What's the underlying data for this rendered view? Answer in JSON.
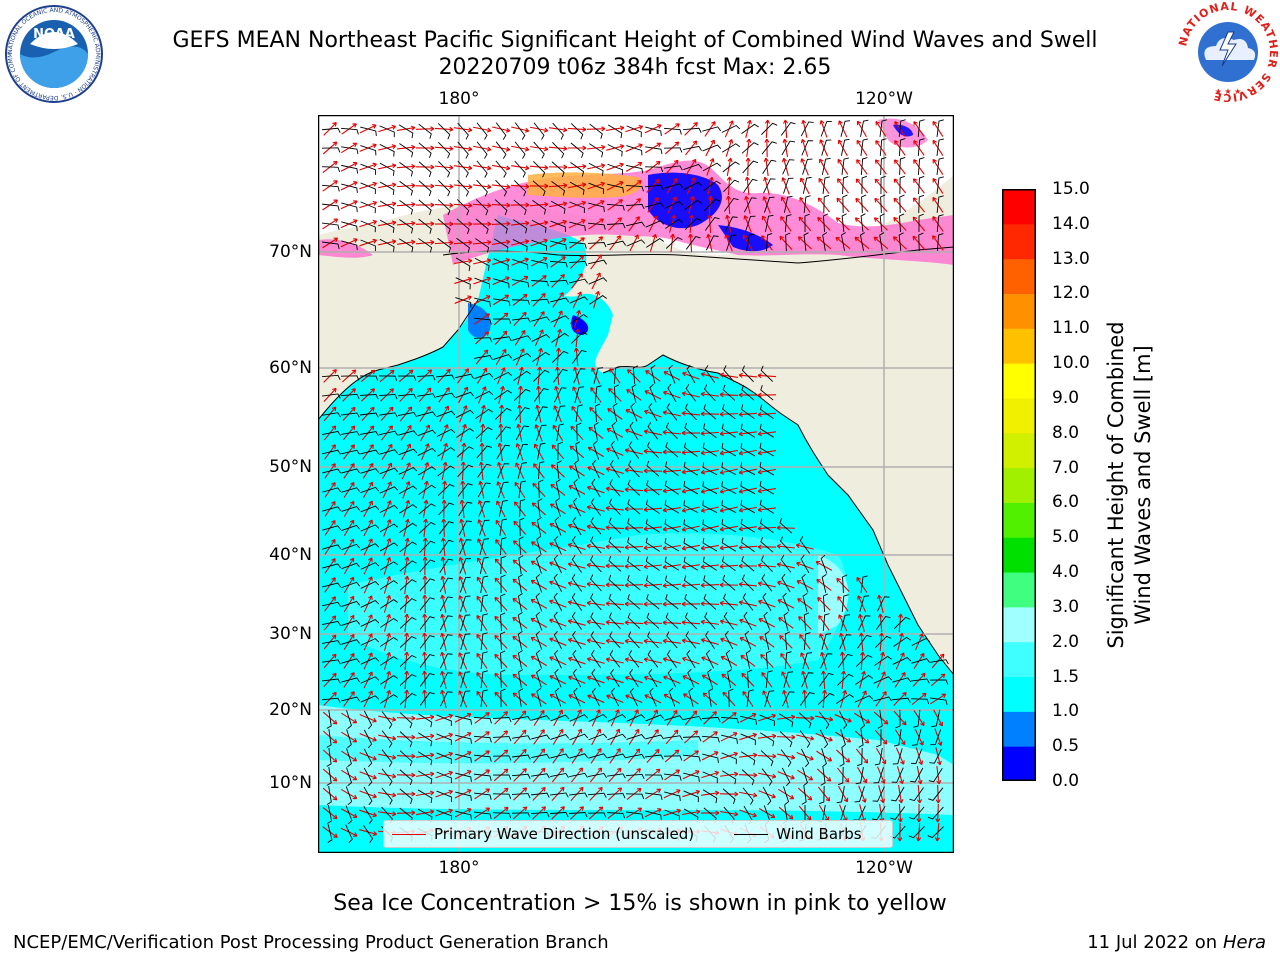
{
  "header": {
    "title_line1": "GEFS MEAN Northeast Pacific Significant Height of Combined Wind Waves and Swell",
    "title_line2": "20220709 t06z 384h fcst   Max: 2.65"
  },
  "logos": {
    "noara_left": "NOAA",
    "noaa_ring_text": "NATIONAL OCEANIC AND ATMOSPHERIC ADMINISTRATION · U.S. DEPARTMENT OF COMMERCE",
    "nws_ring_text": "NATIONAL WEATHER SERVICE"
  },
  "map": {
    "top_lon_labels": [
      "180°",
      "120°W"
    ],
    "bottom_lon_labels": [
      "180°",
      "120°W"
    ],
    "lat_labels": [
      "70°N",
      "60°N",
      "50°N",
      "40°N",
      "30°N",
      "20°N",
      "10°N"
    ],
    "colors": {
      "land": "#efedde",
      "ocean_base": "#00ffff",
      "wave_arrow": "#e60000",
      "wind_barb": "#000000",
      "ice_blue": "#0000ff",
      "ice_pink": "#ff66cc",
      "ice_orange": "#ffb040"
    }
  },
  "legend": {
    "wave_label": "Primary Wave Direction (unscaled)",
    "wind_label": "Wind Barbs"
  },
  "colorbar": {
    "label_line1": "Significant Height of Combined",
    "label_line2": "Wind Waves and Swell [m]",
    "ticks": [
      "15.0",
      "14.0",
      "13.0",
      "12.0",
      "11.0",
      "10.0",
      "9.0",
      "8.0",
      "7.0",
      "6.0",
      "5.0",
      "4.0",
      "3.0",
      "2.0",
      "1.5",
      "1.0",
      "0.5",
      "0.0"
    ],
    "bins_bottom_to_top": [
      "#0000ff",
      "#0080ff",
      "#00ffff",
      "#40ffff",
      "#a0ffff",
      "#40ff80",
      "#00e000",
      "#50f000",
      "#a0f000",
      "#d0f000",
      "#f0f000",
      "#ffff00",
      "#ffc000",
      "#ff9000",
      "#ff6000",
      "#ff2800",
      "#ff0000"
    ]
  },
  "caption": "Sea Ice Concentration > 15% is shown in pink to yellow",
  "footer": {
    "left": "NCEP/EMC/Verification Post Processing Product Generation Branch",
    "date": "11 Jul 2022 on",
    "host": "Hera"
  }
}
